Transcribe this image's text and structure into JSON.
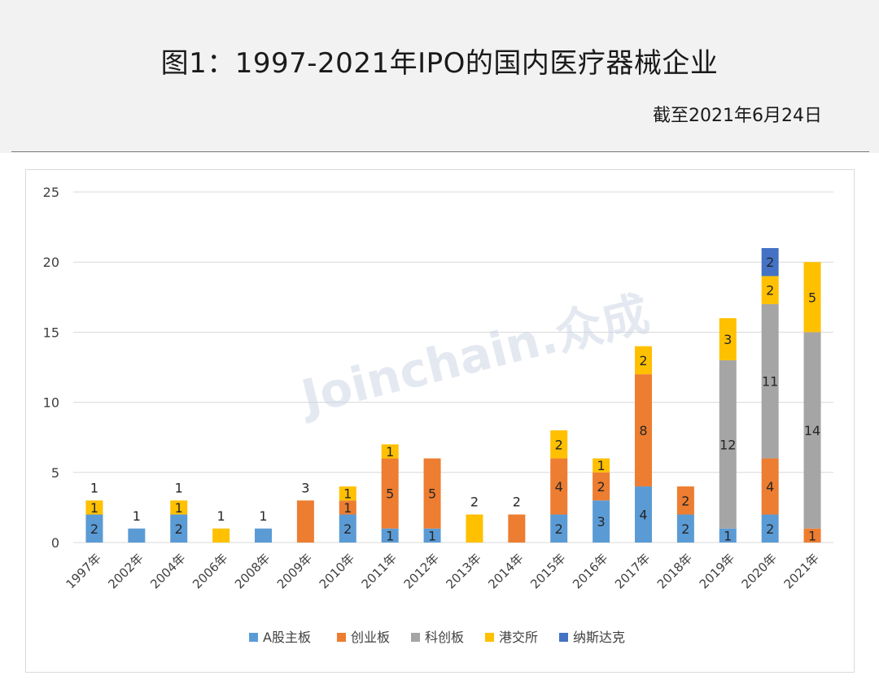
{
  "page": {
    "title": "图1：1997-2021年IPO的国内医疗器械企业",
    "subtitle": "截至2021年6月24日",
    "watermark": "Joinchain.众成"
  },
  "colors": {
    "header_bg": "#f2f2f2",
    "grid": "#d9d9d9",
    "axis_text": "#404040"
  },
  "chart_data": {
    "type": "bar",
    "stacked": true,
    "title": "图1：1997-2021年IPO的国内医疗器械企业",
    "subtitle": "截至2021年6月24日",
    "xlabel": "",
    "ylabel": "",
    "ylim": [
      0,
      25
    ],
    "yticks": [
      0,
      5,
      10,
      15,
      20,
      25
    ],
    "grid": true,
    "legend_position": "bottom",
    "categories": [
      "1997年",
      "2002年",
      "2004年",
      "2006年",
      "2008年",
      "2009年",
      "2010年",
      "2011年",
      "2012年",
      "2013年",
      "2014年",
      "2015年",
      "2016年",
      "2017年",
      "2018年",
      "2019年",
      "2020年",
      "2021年"
    ],
    "series": [
      {
        "name": "A股主板",
        "color": "#5b9bd5",
        "values": [
          2,
          1,
          2,
          0,
          1,
          0,
          2,
          1,
          1,
          0,
          0,
          2,
          3,
          4,
          2,
          1,
          2,
          0
        ]
      },
      {
        "name": "创业板",
        "color": "#ed7d31",
        "values": [
          0,
          0,
          0,
          0,
          0,
          3,
          1,
          5,
          5,
          0,
          2,
          4,
          2,
          8,
          2,
          0,
          4,
          1
        ]
      },
      {
        "name": "科创板",
        "color": "#a5a5a5",
        "values": [
          0,
          0,
          0,
          0,
          0,
          0,
          0,
          0,
          0,
          0,
          0,
          0,
          0,
          0,
          0,
          12,
          11,
          14
        ]
      },
      {
        "name": "港交所",
        "color": "#ffc000",
        "values": [
          1,
          0,
          1,
          1,
          0,
          0,
          1,
          1,
          0,
          2,
          0,
          2,
          1,
          2,
          0,
          3,
          2,
          5
        ]
      },
      {
        "name": "纳斯达克",
        "color": "#4472c4",
        "values": [
          0,
          0,
          0,
          0,
          0,
          0,
          0,
          0,
          0,
          0,
          0,
          0,
          0,
          0,
          0,
          0,
          2,
          0
        ]
      }
    ],
    "segment_labels": [
      [
        2,
        null,
        null,
        1,
        null
      ],
      [
        null,
        null,
        null,
        null,
        null
      ],
      [
        2,
        null,
        null,
        1,
        null
      ],
      [
        null,
        null,
        null,
        null,
        null
      ],
      [
        null,
        null,
        null,
        null,
        null
      ],
      [
        null,
        null,
        null,
        null,
        null
      ],
      [
        2,
        1,
        null,
        1,
        null
      ],
      [
        1,
        5,
        null,
        1,
        null
      ],
      [
        1,
        5,
        null,
        null,
        null
      ],
      [
        null,
        null,
        null,
        null,
        null
      ],
      [
        null,
        null,
        null,
        null,
        null
      ],
      [
        2,
        4,
        null,
        2,
        null
      ],
      [
        3,
        2,
        null,
        1,
        null
      ],
      [
        4,
        8,
        null,
        2,
        null
      ],
      [
        2,
        2,
        null,
        null,
        null
      ],
      [
        1,
        null,
        12,
        3,
        null
      ],
      [
        2,
        4,
        11,
        2,
        2
      ],
      [
        null,
        1,
        14,
        5,
        null
      ]
    ],
    "top_labels": [
      1,
      1,
      1,
      1,
      1,
      3,
      null,
      null,
      null,
      2,
      2,
      null,
      null,
      null,
      null,
      null,
      null,
      null
    ]
  }
}
